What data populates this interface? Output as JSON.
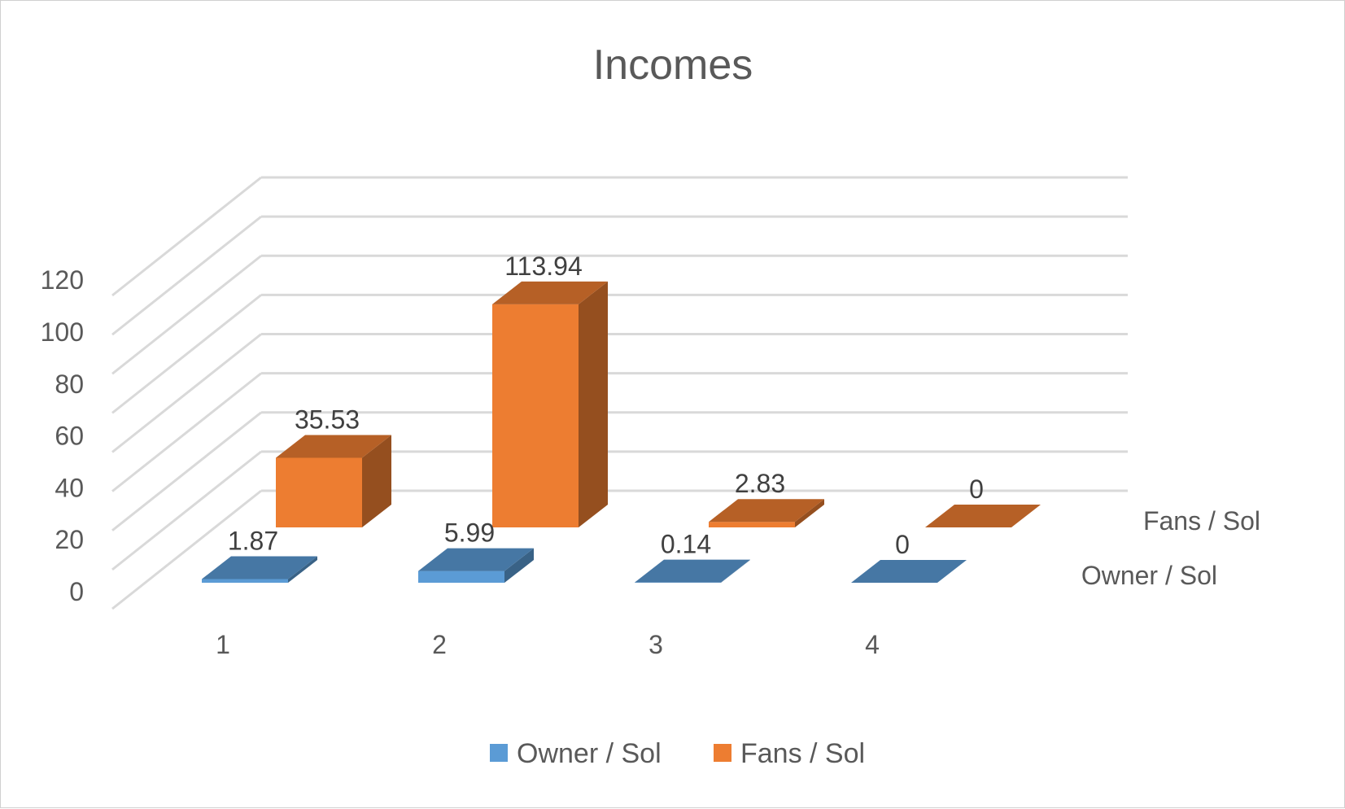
{
  "chart_data": {
    "type": "bar",
    "subtype": "3d-column",
    "title": "Incomes",
    "categories": [
      "1",
      "2",
      "3",
      "4"
    ],
    "series": [
      {
        "name": "Owner / Sol",
        "values": [
          1.87,
          5.99,
          0.14,
          0
        ],
        "color": "#5b9bd5"
      },
      {
        "name": "Fans / Sol",
        "values": [
          35.53,
          113.94,
          2.83,
          0
        ],
        "color": "#ed7d31"
      }
    ],
    "data_labels": [
      [
        "1.87",
        "5.99",
        "0.14",
        "0"
      ],
      [
        "35.53",
        "113.94",
        "2.83",
        "0"
      ]
    ],
    "y_ticks": [
      "0",
      "20",
      "40",
      "60",
      "80",
      "100",
      "120"
    ],
    "ylim": [
      0,
      160
    ],
    "grid": true,
    "legend": "bottom",
    "depth_axis_labels": [
      "Owner / Sol",
      "Fans / Sol"
    ]
  }
}
